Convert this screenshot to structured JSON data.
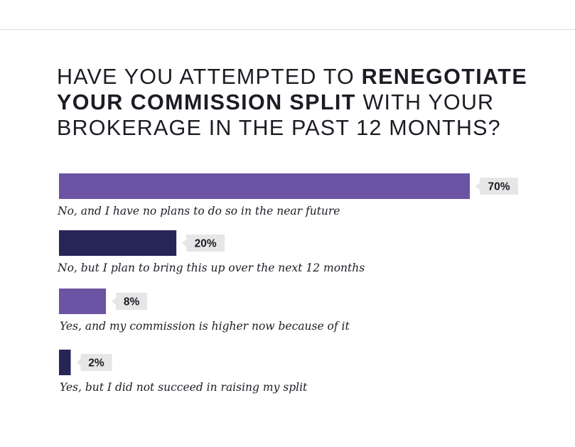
{
  "title": {
    "part1": "Have you attempted to ",
    "part2": "renegotiate your commission split",
    "part3": " with your brokerage in the past 12 months?"
  },
  "colors": {
    "purple": "#6c53a4",
    "navy": "#272456",
    "badge": "#e6e6e6",
    "text": "#1c1c24"
  },
  "chart_data": {
    "type": "bar",
    "orientation": "horizontal",
    "title": "Have you attempted to renegotiate your commission split with your brokerage in the past 12 months?",
    "categories": [
      "No, and I have no plans to do so in the near future",
      "No, but I plan to bring this up over the next 12 months",
      "Yes, and my commission is higher now because of it",
      "Yes, but I did not succeed in raising my split"
    ],
    "values": [
      70,
      20,
      8,
      2
    ],
    "value_labels": [
      "70%",
      "20%",
      "8%",
      "2%"
    ],
    "bar_colors": [
      "#6c53a4",
      "#272456",
      "#6c53a4",
      "#272456"
    ],
    "xlim": [
      0,
      70
    ],
    "grid": false,
    "legend": "none"
  }
}
